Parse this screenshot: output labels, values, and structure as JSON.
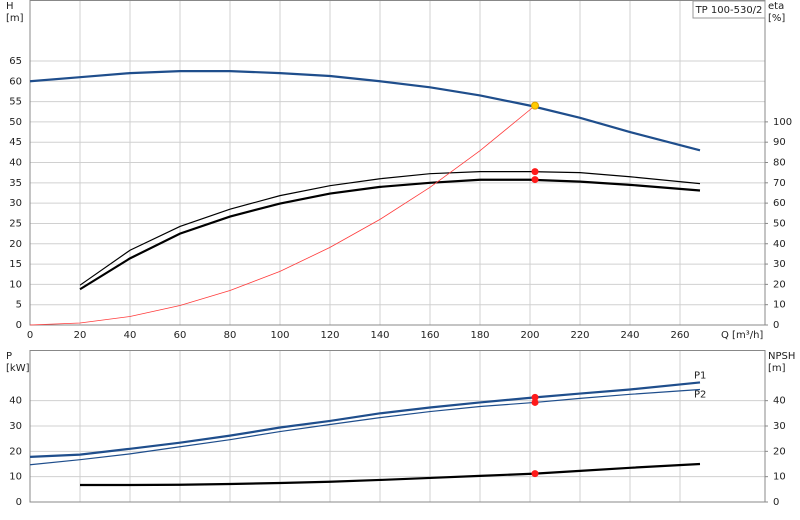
{
  "chart_data": [
    {
      "type": "line",
      "title": "TP 100-530/2",
      "y_label": [
        "H",
        "[m]"
      ],
      "y2_label": [
        "eta",
        "[%]"
      ],
      "x_label": "Q [m³/h]",
      "xlim": [
        0,
        294
      ],
      "xticks": [
        0,
        20,
        40,
        60,
        80,
        100,
        120,
        140,
        160,
        180,
        200,
        220,
        240,
        260
      ],
      "ylim": [
        0,
        80
      ],
      "yticks": [
        0,
        5,
        10,
        15,
        20,
        25,
        30,
        35,
        40,
        45,
        50,
        55,
        60,
        65
      ],
      "y2lim": [
        0,
        160
      ],
      "y2ticks": [
        0,
        10,
        20,
        30,
        40,
        50,
        60,
        70,
        80,
        90,
        100
      ],
      "grid": true,
      "series": [
        {
          "color": "#1f4e8c",
          "style": "thick",
          "axis": "y",
          "x": [
            0,
            20,
            40,
            60,
            80,
            100,
            120,
            140,
            160,
            180,
            200,
            220,
            240,
            268
          ],
          "values": [
            60,
            61,
            62,
            62.5,
            62.5,
            62,
            61.3,
            60,
            58.5,
            56.5,
            54,
            51,
            47.5,
            43
          ]
        },
        {
          "color": "#000000",
          "style": "thin",
          "axis": "y2",
          "x": [
            20,
            40,
            60,
            80,
            100,
            120,
            140,
            160,
            180,
            200,
            220,
            240,
            268
          ],
          "values": [
            19.6,
            36.8,
            48.5,
            57,
            63.7,
            68.6,
            72,
            74.5,
            75.5,
            75.5,
            75,
            73,
            69.6
          ]
        },
        {
          "color": "#000000",
          "style": "thick",
          "axis": "y2",
          "x": [
            20,
            40,
            60,
            80,
            100,
            120,
            140,
            160,
            180,
            200,
            220,
            240,
            268
          ],
          "values": [
            17.6,
            32.8,
            45,
            53.4,
            59.8,
            64.7,
            68,
            70,
            71.5,
            71.5,
            70.6,
            69,
            66.2
          ]
        },
        {
          "color": "#ff3b3b",
          "style": "hair",
          "axis": "y",
          "x": [
            0,
            20,
            40,
            60,
            80,
            100,
            120,
            140,
            160,
            180,
            202
          ],
          "values": [
            0,
            0.5,
            2.1,
            4.8,
            8.5,
            13.2,
            19.1,
            26,
            33.9,
            42.9,
            54
          ]
        }
      ],
      "points": [
        {
          "x": 202,
          "y": 54,
          "color": "#ffcc00",
          "axis": "y"
        },
        {
          "x": 202,
          "y": 75.5,
          "color": "#ff1a1a",
          "axis": "y2"
        },
        {
          "x": 202,
          "y": 71.6,
          "color": "#ff1a1a",
          "axis": "y2"
        }
      ]
    },
    {
      "type": "line",
      "y_label": [
        "P",
        "[kW]"
      ],
      "y2_label": [
        "NPSH",
        "[m]"
      ],
      "xlim": [
        0,
        294
      ],
      "xticks": [
        0,
        20,
        40,
        60,
        80,
        100,
        120,
        140,
        160,
        180,
        200,
        220,
        240,
        260
      ],
      "ylim": [
        0,
        60
      ],
      "yticks": [
        0,
        10,
        20,
        30,
        40
      ],
      "y2lim": [
        0,
        60
      ],
      "y2ticks": [
        0,
        10,
        20,
        30,
        40
      ],
      "grid": true,
      "series": [
        {
          "name": "P1",
          "color": "#1f4e8c",
          "style": "thick",
          "axis": "y",
          "x": [
            0,
            20,
            40,
            60,
            80,
            100,
            120,
            140,
            160,
            180,
            202,
            220,
            240,
            268
          ],
          "values": [
            17.8,
            18.7,
            21,
            23.4,
            26.2,
            29.4,
            32,
            35,
            37.3,
            39.3,
            41.3,
            42.8,
            44.4,
            47.2
          ]
        },
        {
          "name": "P2",
          "color": "#1f4e8c",
          "style": "thin",
          "axis": "y",
          "x": [
            0,
            20,
            40,
            60,
            80,
            100,
            120,
            140,
            160,
            180,
            202,
            220,
            240,
            268
          ],
          "values": [
            14.7,
            16.7,
            19,
            21.8,
            24.6,
            27.8,
            30.6,
            33.3,
            35.7,
            37.7,
            39.3,
            40.9,
            42.5,
            44.4
          ]
        },
        {
          "color": "#000000",
          "style": "thick",
          "axis": "y2",
          "x": [
            20,
            40,
            60,
            80,
            100,
            120,
            140,
            160,
            180,
            202,
            220,
            240,
            268
          ],
          "values": [
            6.7,
            6.7,
            6.8,
            7.1,
            7.5,
            8,
            8.7,
            9.5,
            10.3,
            11.2,
            12.3,
            13.5,
            15
          ]
        }
      ],
      "points": [
        {
          "x": 202,
          "y": 41.3,
          "color": "#ff1a1a",
          "axis": "y"
        },
        {
          "x": 202,
          "y": 39.3,
          "color": "#ff1a1a",
          "axis": "y"
        },
        {
          "x": 202,
          "y": 11.2,
          "color": "#ff1a1a",
          "axis": "y2"
        }
      ]
    }
  ]
}
